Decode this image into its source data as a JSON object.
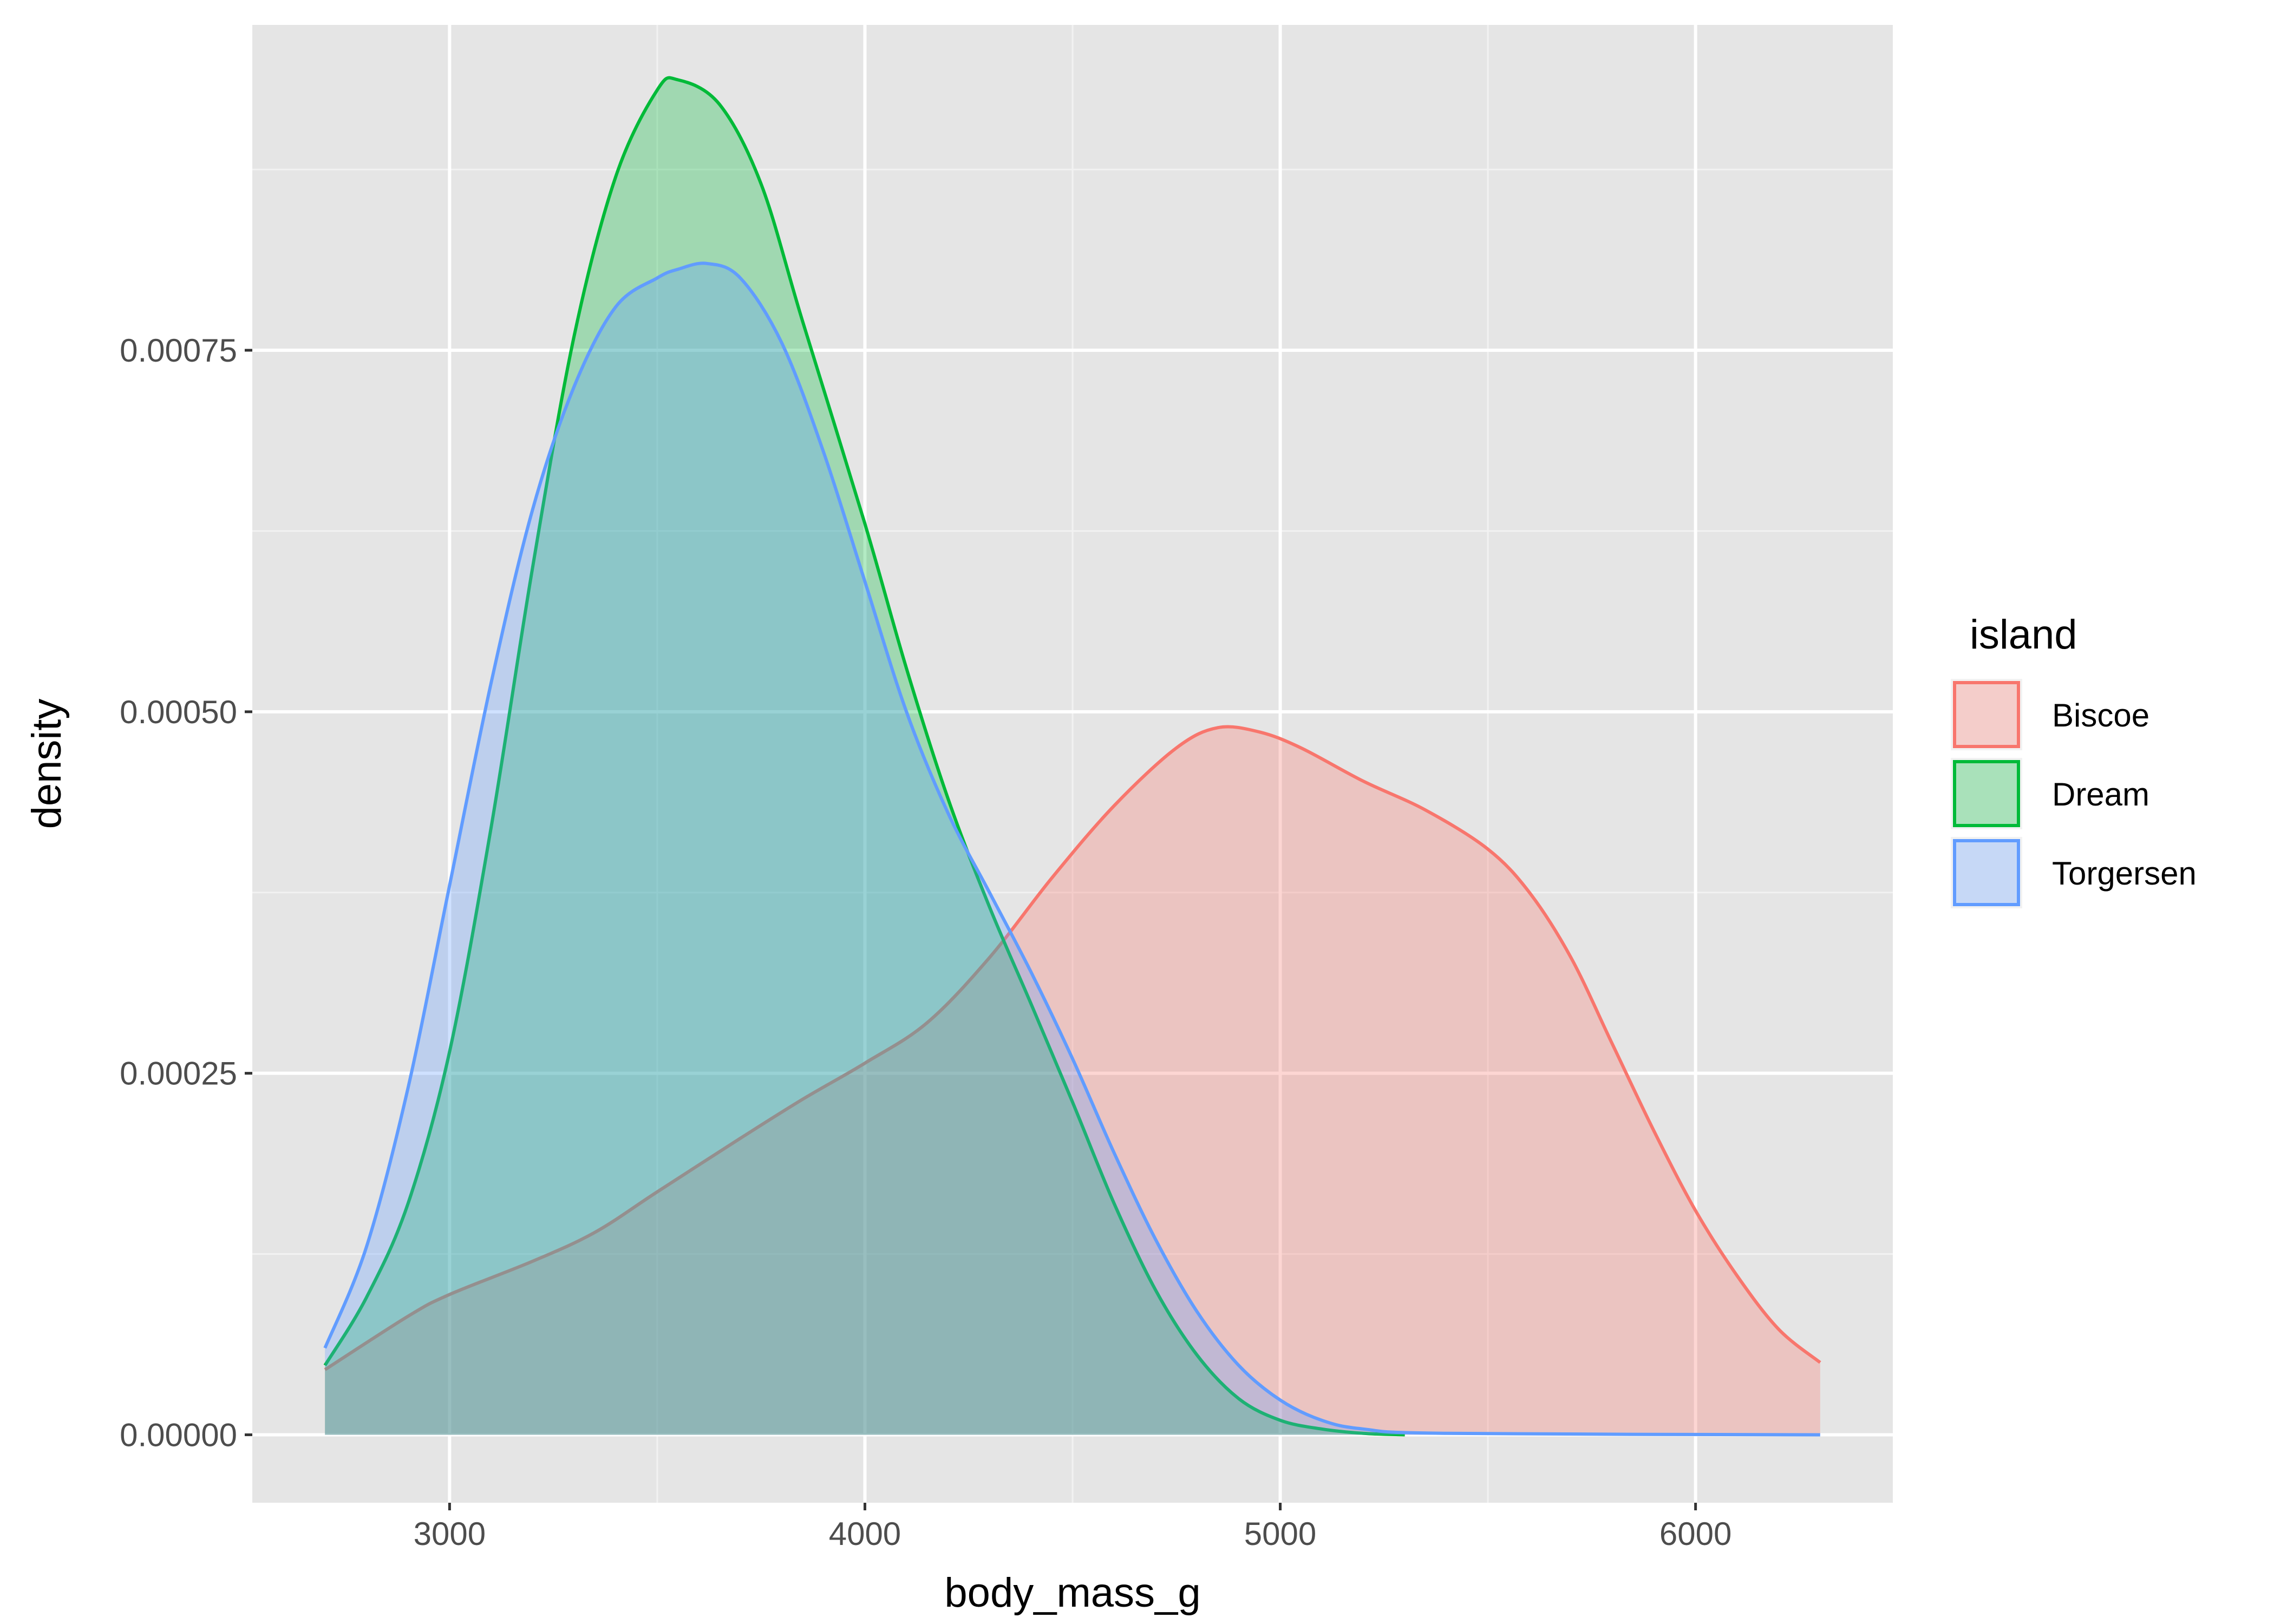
{
  "chart_data": {
    "type": "area",
    "subtype": "density",
    "xlabel": "body_mass_g",
    "ylabel": "density",
    "xlim": [
      2525,
      6475
    ],
    "ylim": [
      -4.7e-05,
      0.000975
    ],
    "x_ticks": [
      3000,
      4000,
      5000,
      6000
    ],
    "x_tick_labels": [
      "3000",
      "4000",
      "5000",
      "6000"
    ],
    "x_minor_ticks": [
      3500,
      4500,
      5500
    ],
    "y_ticks": [
      0,
      0.00025,
      0.0005,
      0.00075
    ],
    "y_tick_labels": [
      "0.00000",
      "0.00025",
      "0.00050",
      "0.00075"
    ],
    "y_minor_ticks": [
      0.000125,
      0.000375,
      0.000625,
      0.000875
    ],
    "grid": true,
    "background": "#E5E5E5",
    "fill_alpha": 0.3,
    "legend": {
      "title": "island",
      "position": "right",
      "entries": [
        "Biscoe",
        "Dream",
        "Torgersen"
      ]
    },
    "series": [
      {
        "name": "Biscoe",
        "color": "#F8766D",
        "points": [
          [
            2700,
            4.5e-05
          ],
          [
            2900,
            8.2e-05
          ],
          [
            3000,
            9.7e-05
          ],
          [
            3200,
            0.00012
          ],
          [
            3350,
            0.00014
          ],
          [
            3500,
            0.000168
          ],
          [
            3700,
            0.000205
          ],
          [
            3850,
            0.000232
          ],
          [
            4000,
            0.000257
          ],
          [
            4150,
            0.000285
          ],
          [
            4300,
            0.00033
          ],
          [
            4450,
            0.000385
          ],
          [
            4600,
            0.000435
          ],
          [
            4750,
            0.000475
          ],
          [
            4850,
            0.000489
          ],
          [
            4950,
            0.000486
          ],
          [
            5050,
            0.000475
          ],
          [
            5200,
            0.000452
          ],
          [
            5350,
            0.000432
          ],
          [
            5500,
            0.000405
          ],
          [
            5600,
            0.000375
          ],
          [
            5700,
            0.00033
          ],
          [
            5800,
            0.00027
          ],
          [
            5900,
            0.00021
          ],
          [
            6000,
            0.000155
          ],
          [
            6100,
            0.00011
          ],
          [
            6200,
            7.3e-05
          ],
          [
            6300,
            5e-05
          ]
        ]
      },
      {
        "name": "Dream",
        "color": "#00BA38",
        "points": [
          [
            2700,
            4.8e-05
          ],
          [
            2800,
            9.5e-05
          ],
          [
            2900,
            0.00016
          ],
          [
            3000,
            0.000265
          ],
          [
            3100,
            0.00042
          ],
          [
            3200,
            0.0006
          ],
          [
            3300,
            0.00076
          ],
          [
            3400,
            0.00087
          ],
          [
            3500,
            0.00093
          ],
          [
            3550,
            0.000937
          ],
          [
            3650,
            0.00092
          ],
          [
            3750,
            0.000865
          ],
          [
            3850,
            0.00077
          ],
          [
            4000,
            0.00063
          ],
          [
            4100,
            0.00053
          ],
          [
            4200,
            0.00044
          ],
          [
            4300,
            0.000365
          ],
          [
            4400,
            0.000298
          ],
          [
            4500,
            0.00023
          ],
          [
            4600,
            0.00016
          ],
          [
            4700,
            0.0001
          ],
          [
            4800,
            5.5e-05
          ],
          [
            4900,
            2.5e-05
          ],
          [
            5000,
            1e-05
          ],
          [
            5100,
            4e-06
          ],
          [
            5200,
            1e-06
          ],
          [
            5300,
            0.0
          ]
        ]
      },
      {
        "name": "Torgersen",
        "color": "#619CFF",
        "points": [
          [
            2700,
            6e-05
          ],
          [
            2800,
            0.00013
          ],
          [
            2900,
            0.00024
          ],
          [
            3000,
            0.00038
          ],
          [
            3100,
            0.00052
          ],
          [
            3200,
            0.00064
          ],
          [
            3300,
            0.000725
          ],
          [
            3400,
            0.00078
          ],
          [
            3500,
            0.0008
          ],
          [
            3550,
            0.000806
          ],
          [
            3620,
            0.00081
          ],
          [
            3700,
            0.0008
          ],
          [
            3800,
            0.000755
          ],
          [
            3900,
            0.00068
          ],
          [
            4000,
            0.00059
          ],
          [
            4100,
            0.0005
          ],
          [
            4200,
            0.00043
          ],
          [
            4300,
            0.000375
          ],
          [
            4400,
            0.00032
          ],
          [
            4500,
            0.00026
          ],
          [
            4600,
            0.000195
          ],
          [
            4700,
            0.000135
          ],
          [
            4800,
            8.5e-05
          ],
          [
            4900,
            4.8e-05
          ],
          [
            5000,
            2.4e-05
          ],
          [
            5100,
            1e-05
          ],
          [
            5200,
            4e-06
          ],
          [
            5400,
            1e-06
          ],
          [
            6300,
            0.0
          ]
        ]
      }
    ]
  }
}
